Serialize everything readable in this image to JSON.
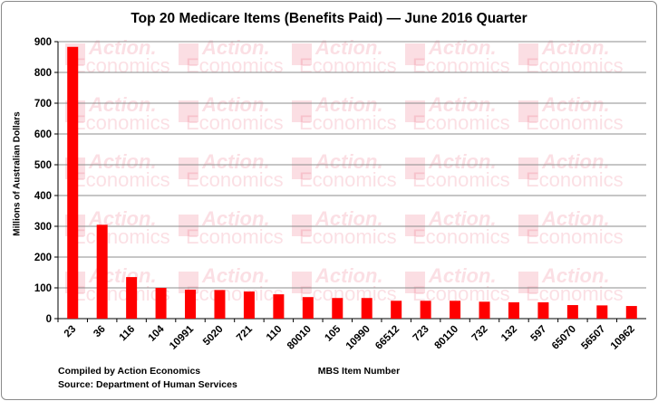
{
  "chart_data": {
    "type": "bar",
    "title": "Top 20 Medicare Items (Benefits Paid) — June 2016 Quarter",
    "xlabel": "MBS Item Number",
    "ylabel": "Millions of Australian Dollars",
    "ylim": [
      0,
      900
    ],
    "yticks": [
      0,
      100,
      200,
      300,
      400,
      500,
      600,
      700,
      800,
      900
    ],
    "grid": true,
    "categories": [
      "23",
      "36",
      "116",
      "104",
      "10991",
      "5020",
      "721",
      "110",
      "80010",
      "105",
      "10990",
      "66512",
      "723",
      "80110",
      "732",
      "132",
      "597",
      "65070",
      "56507",
      "10962"
    ],
    "values": [
      883,
      305,
      135,
      100,
      94,
      93,
      88,
      79,
      70,
      67,
      67,
      58,
      58,
      58,
      55,
      53,
      53,
      44,
      43,
      41
    ],
    "bar_color": "#ff0000"
  },
  "watermark": {
    "line1": "Action.",
    "line2": "Economics"
  },
  "notes": {
    "compiled": "Compiled by Action Economics",
    "source": "Source: Department of Human Services"
  }
}
